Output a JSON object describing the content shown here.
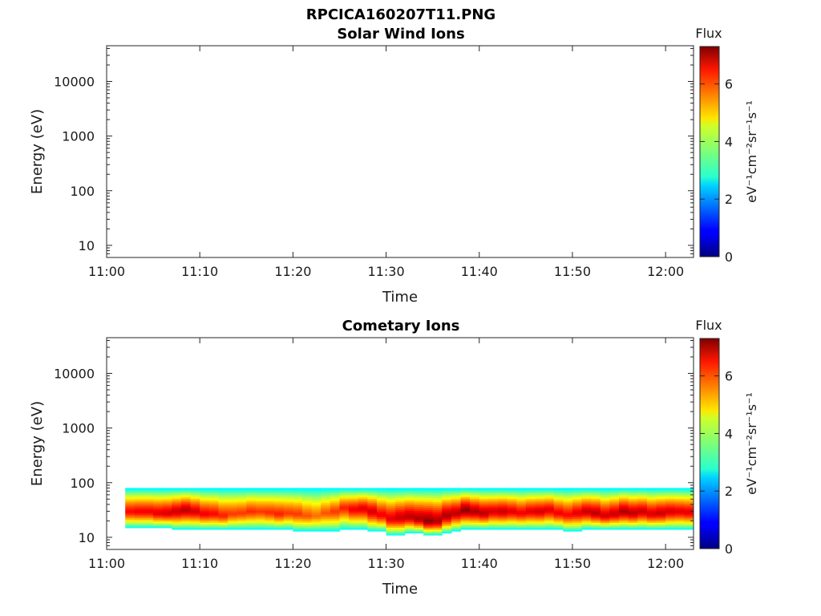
{
  "figure": {
    "title": "RPCICA160207T11.PNG"
  },
  "chart_data": [
    {
      "type": "heatmap",
      "title": "Solar Wind Ions",
      "xlabel": "Time",
      "ylabel": "Energy (eV)",
      "x_scale": "time",
      "y_scale": "log",
      "xlim": [
        "11:00",
        "12:03"
      ],
      "ylim": [
        6,
        45000
      ],
      "x_ticks": [
        "11:00",
        "11:10",
        "11:20",
        "11:30",
        "11:40",
        "11:50",
        "12:00"
      ],
      "y_ticks": [
        "10",
        "100",
        "1000",
        "10000"
      ],
      "colorbar": {
        "title": "Flux",
        "label": "eV⁻¹cm⁻²sr⁻¹s⁻¹",
        "ticks": [
          "0",
          "2",
          "4",
          "6"
        ],
        "range": [
          0,
          7.3
        ],
        "colormap": "jet"
      },
      "data": "empty"
    },
    {
      "type": "heatmap",
      "title": "Cometary Ions",
      "xlabel": "Time",
      "ylabel": "Energy (eV)",
      "x_scale": "time",
      "y_scale": "log",
      "xlim": [
        "11:00",
        "12:03"
      ],
      "ylim": [
        6,
        45000
      ],
      "x_ticks": [
        "11:00",
        "11:10",
        "11:20",
        "11:30",
        "11:40",
        "11:50",
        "12:00"
      ],
      "y_ticks": [
        "10",
        "100",
        "1000",
        "10000"
      ],
      "colorbar": {
        "title": "Flux",
        "label": "eV⁻¹cm⁻²sr⁻¹s⁻¹",
        "ticks": [
          "0",
          "2",
          "4",
          "6"
        ],
        "range": [
          0,
          7.3
        ],
        "colormap": "jet"
      },
      "data_start": "11:02",
      "data_end": "12:03",
      "band_peak_energy": [
        30,
        30,
        30,
        28,
        28,
        30,
        32,
        30,
        27,
        27,
        25,
        27,
        28,
        30,
        30,
        29,
        27,
        28,
        27,
        25,
        25,
        28,
        30,
        35,
        33,
        34,
        30,
        26,
        22,
        23,
        24,
        22,
        20,
        20,
        25,
        28,
        32,
        30,
        28,
        30,
        30,
        30,
        28,
        30,
        30,
        32,
        28,
        26,
        28,
        30,
        28,
        25,
        27,
        30,
        28,
        30,
        27,
        28,
        30,
        30,
        29
      ],
      "band_peak_flux": [
        6.4,
        6.5,
        6.5,
        6.6,
        6.7,
        6.8,
        6.9,
        6.7,
        6.5,
        6.4,
        6.2,
        6.0,
        6.0,
        6.1,
        6.0,
        6.1,
        6.2,
        6.0,
        6.0,
        5.8,
        5.6,
        5.8,
        6.0,
        6.2,
        6.5,
        6.6,
        6.7,
        6.5,
        6.6,
        6.8,
        6.9,
        7.0,
        7.2,
        7.0,
        7.0,
        6.9,
        7.2,
        7.0,
        6.9,
        6.7,
        6.8,
        6.6,
        6.5,
        6.6,
        6.7,
        6.6,
        6.5,
        6.4,
        6.6,
        6.8,
        6.9,
        6.7,
        6.8,
        7.0,
        6.9,
        6.8,
        6.7,
        6.8,
        6.7,
        6.6,
        6.6
      ],
      "band_low_energy": [
        15,
        15,
        15,
        15,
        15,
        14,
        14,
        14,
        14,
        14,
        14,
        14,
        14,
        14,
        14,
        14,
        14,
        14,
        13,
        13,
        13,
        13,
        13,
        14,
        14,
        14,
        13,
        13,
        11,
        11,
        12,
        12,
        11,
        11,
        12,
        13,
        14,
        14,
        14,
        14,
        14,
        14,
        14,
        14,
        14,
        14,
        14,
        13,
        13,
        14,
        14,
        14,
        14,
        14,
        14,
        14,
        14,
        14,
        14,
        14,
        14
      ],
      "band_high_energy": [
        80,
        80,
        80,
        80,
        80,
        80,
        80,
        80,
        80,
        80,
        80,
        80,
        80,
        80,
        80,
        80,
        80,
        80,
        80,
        80,
        80,
        80,
        80,
        80,
        80,
        80,
        80,
        80,
        80,
        80,
        80,
        80,
        80,
        80,
        80,
        80,
        80,
        80,
        80,
        80,
        80,
        80,
        80,
        80,
        80,
        80,
        80,
        80,
        80,
        80,
        80,
        80,
        80,
        80,
        80,
        80,
        80,
        80,
        80,
        80,
        80
      ]
    }
  ]
}
